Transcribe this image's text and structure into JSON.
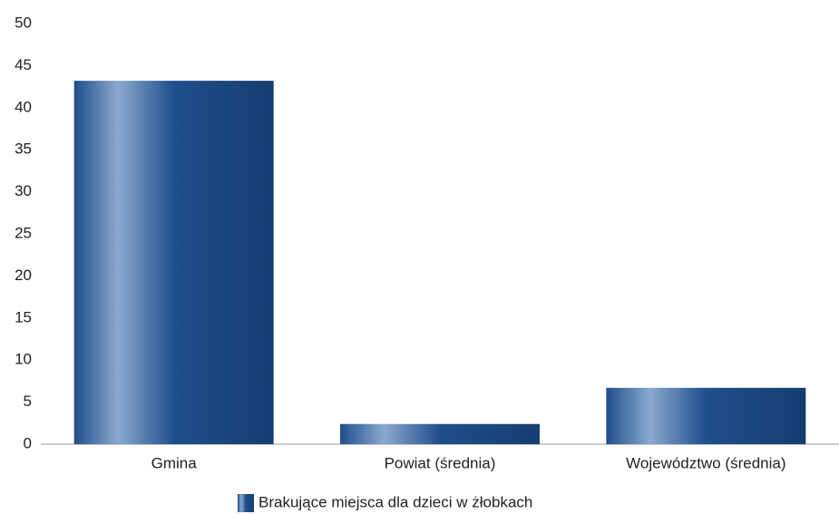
{
  "chart_data": {
    "type": "bar",
    "categories": [
      "Gmina",
      "Powiat (średnia)",
      "Województwo (średnia)"
    ],
    "series": [
      {
        "name": "Brakujące miejsca dla dzieci w żłobkach",
        "color": "#1f4e8c",
        "values": [
          43.2,
          2.4,
          6.7
        ]
      }
    ],
    "ylim": [
      0,
      50
    ],
    "yticks": [
      0,
      5,
      10,
      15,
      20,
      25,
      30,
      35,
      40,
      45,
      50
    ],
    "grid": false,
    "legend": "bottom"
  }
}
